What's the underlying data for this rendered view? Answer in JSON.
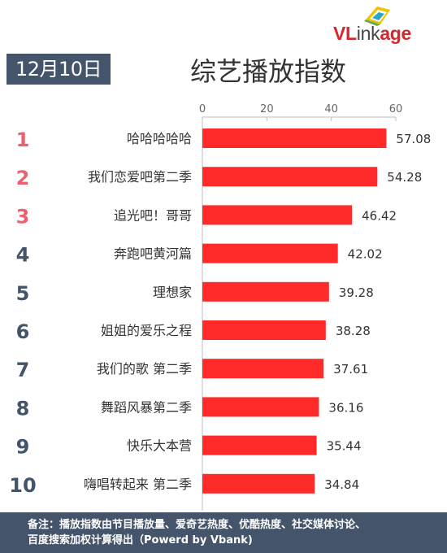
{
  "header": {
    "date": "12月10日",
    "title": "综艺播放指数",
    "logo": {
      "brand_red": "VL",
      "brand_gray": "ink",
      "brand_tail": "age"
    }
  },
  "footer": {
    "line1": "备注：播放指数由节目播放量、爱奇艺热度、优酷热度、社交媒体讨论、",
    "line2": "百度搜索加权计算得出（Powerd by Vbank)"
  },
  "colors": {
    "bar": "#ff2b2b",
    "rank_top": "#e9626d",
    "rank_other": "#44546a",
    "badge": "#44546a"
  },
  "chart_data": {
    "type": "bar",
    "orientation": "horizontal",
    "xlim": [
      0,
      60
    ],
    "ticks": [
      0,
      20,
      40,
      60
    ],
    "tick_labels": [
      "0",
      "20",
      "40",
      "60"
    ],
    "grid": false,
    "categories": [
      "哈哈哈哈哈",
      "我们恋爱吧第二季",
      "追光吧！哥哥",
      "奔跑吧黄河篇",
      "理想家",
      "姐姐的爱乐之程",
      "我们的歌 第二季",
      "舞蹈风暴第二季",
      "快乐大本营",
      "嗨唱转起来 第二季"
    ],
    "ranks": [
      "1",
      "2",
      "3",
      "4",
      "5",
      "6",
      "7",
      "8",
      "9",
      "10"
    ],
    "values": [
      57.08,
      54.28,
      46.42,
      42.02,
      39.28,
      38.28,
      37.61,
      36.16,
      35.44,
      34.84
    ],
    "value_labels": [
      "57.08",
      "54.28",
      "46.42",
      "42.02",
      "39.28",
      "38.28",
      "37.61",
      "36.16",
      "35.44",
      "34.84"
    ]
  }
}
